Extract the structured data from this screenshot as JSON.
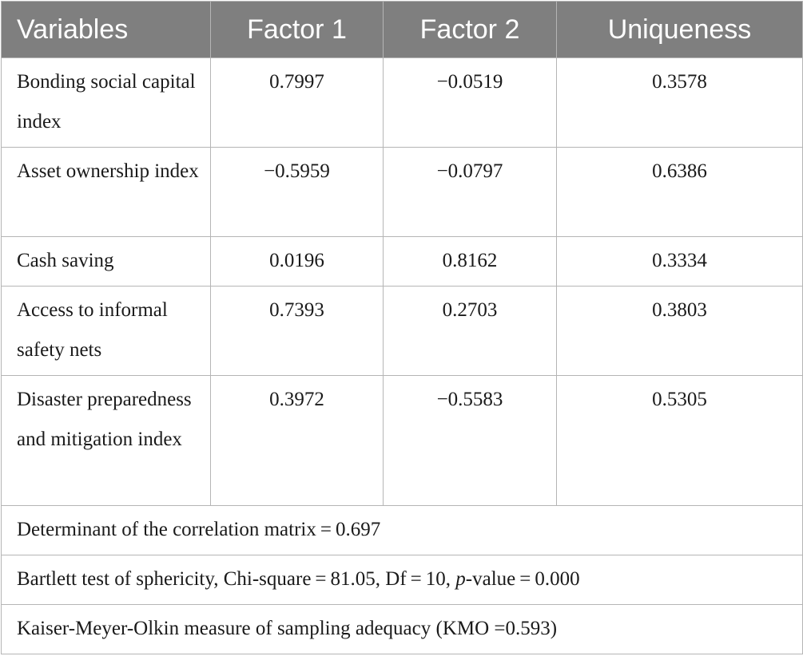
{
  "table": {
    "headers": [
      "Variables",
      "Factor 1",
      "Factor 2",
      "Uniqueness"
    ],
    "rows": [
      {
        "variable": "Bonding social capital index",
        "factor1": "0.7997",
        "factor2": "−0.0519",
        "uniqueness": "0.3578"
      },
      {
        "variable": "Asset ownership index",
        "factor1": "−0.5959",
        "factor2": "−0.0797",
        "uniqueness": "0.6386"
      },
      {
        "variable": "Cash saving",
        "factor1": "0.0196",
        "factor2": "0.8162",
        "uniqueness": "0.3334"
      },
      {
        "variable": "Access to informal safety nets",
        "factor1": "0.7393",
        "factor2": "0.2703",
        "uniqueness": "0.3803"
      },
      {
        "variable": "Disaster preparedness and mitigation index",
        "factor1": "0.3972",
        "factor2": "−0.5583",
        "uniqueness": "0.5305"
      }
    ],
    "footnotes": {
      "determinant": "Determinant of the correlation matrix = 0.697",
      "bartlett_prefix": "Bartlett test of sphericity, Chi-square = 81.05, Df = 10, ",
      "bartlett_p": "p",
      "bartlett_suffix": "-value = 0.000",
      "kmo": "Kaiser-Meyer-Olkin measure of sampling adequacy (KMO =0.593)"
    }
  }
}
